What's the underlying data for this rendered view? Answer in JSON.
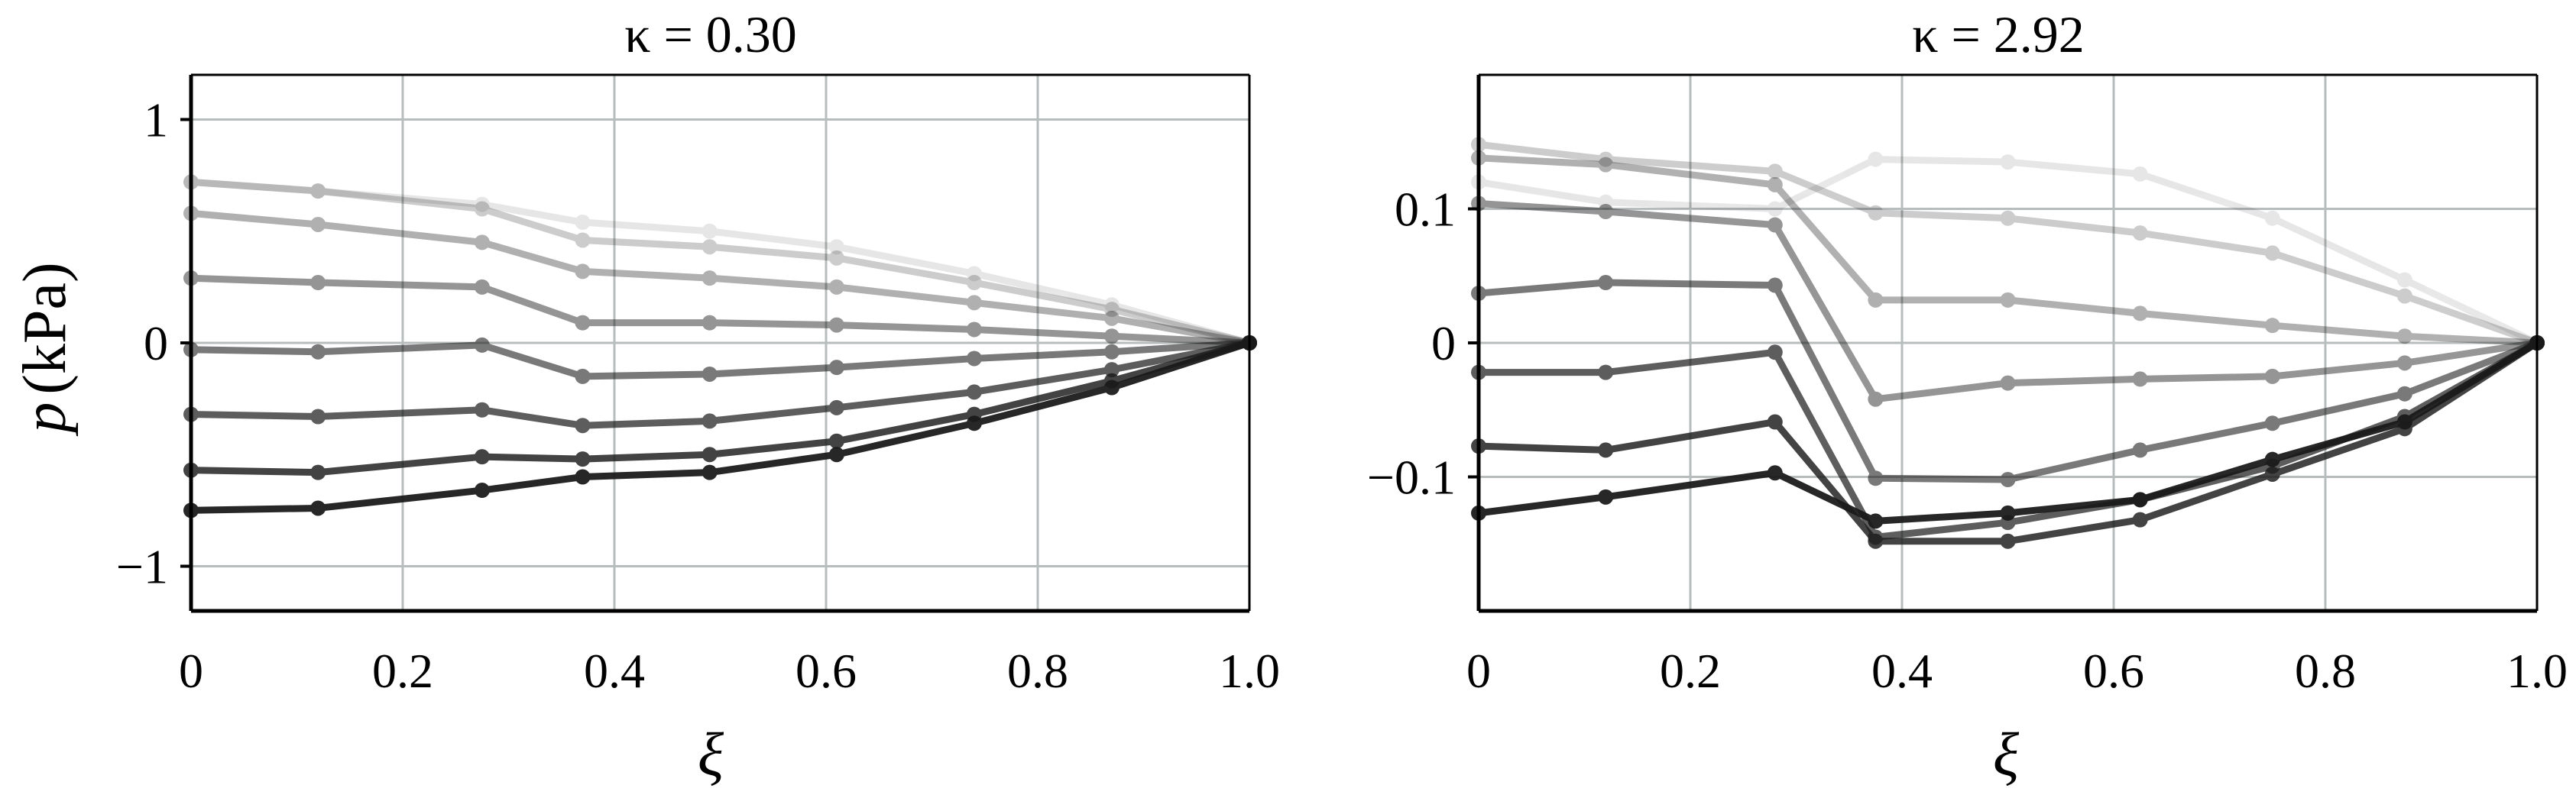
{
  "chart_data": [
    {
      "type": "line",
      "title": "κ = 0.30",
      "xlabel": "ξ",
      "ylabel_var": "p",
      "ylabel_unit": "(kPa)",
      "xlim": [
        0,
        1.0
      ],
      "ylim": [
        -1.2,
        1.2
      ],
      "grid": true,
      "xticks": [
        0,
        0.2,
        0.4,
        0.6,
        0.8,
        1.0
      ],
      "xtick_labels": [
        "0",
        "0.2",
        "0.4",
        "0.6",
        "0.8",
        "1.0"
      ],
      "yticks": [
        -1,
        0,
        1
      ],
      "ytick_labels": [
        "−1",
        "0",
        "1"
      ],
      "x": [
        0,
        0.12,
        0.275,
        0.37,
        0.49,
        0.61,
        0.74,
        0.87,
        1.0
      ],
      "series": [
        {
          "opacity": 0.1,
          "values": [
            0.72,
            0.68,
            0.62,
            0.54,
            0.5,
            0.43,
            0.31,
            0.17,
            0
          ]
        },
        {
          "opacity": 0.22,
          "values": [
            0.72,
            0.68,
            0.6,
            0.46,
            0.43,
            0.38,
            0.27,
            0.15,
            0
          ]
        },
        {
          "opacity": 0.34,
          "values": [
            0.58,
            0.53,
            0.45,
            0.32,
            0.29,
            0.25,
            0.18,
            0.11,
            0
          ]
        },
        {
          "opacity": 0.46,
          "values": [
            0.29,
            0.27,
            0.25,
            0.09,
            0.09,
            0.08,
            0.06,
            0.03,
            0
          ]
        },
        {
          "opacity": 0.58,
          "values": [
            -0.03,
            -0.04,
            -0.01,
            -0.15,
            -0.14,
            -0.11,
            -0.07,
            -0.04,
            0
          ]
        },
        {
          "opacity": 0.7,
          "values": [
            -0.32,
            -0.33,
            -0.3,
            -0.37,
            -0.35,
            -0.29,
            -0.22,
            -0.12,
            0
          ]
        },
        {
          "opacity": 0.82,
          "values": [
            -0.57,
            -0.58,
            -0.51,
            -0.52,
            -0.5,
            -0.44,
            -0.32,
            -0.17,
            0
          ]
        },
        {
          "opacity": 0.94,
          "values": [
            -0.75,
            -0.74,
            -0.66,
            -0.6,
            -0.58,
            -0.5,
            -0.36,
            -0.2,
            0
          ]
        }
      ]
    },
    {
      "type": "line",
      "title": "κ = 2.92",
      "xlabel": "ξ",
      "xlim": [
        0,
        1.0
      ],
      "ylim": [
        -0.2,
        0.2
      ],
      "grid": true,
      "xticks": [
        0,
        0.2,
        0.4,
        0.6,
        0.8,
        1.0
      ],
      "xtick_labels": [
        "0",
        "0.2",
        "0.4",
        "0.6",
        "0.8",
        "1.0"
      ],
      "yticks": [
        -0.1,
        0,
        0.1
      ],
      "ytick_labels": [
        "−0.1",
        "0",
        "0.1"
      ],
      "x": [
        0,
        0.12,
        0.28,
        0.375,
        0.5,
        0.625,
        0.75,
        0.875,
        1.0
      ],
      "series": [
        {
          "opacity": 0.1,
          "values": [
            0.12,
            0.105,
            0.1,
            0.137,
            0.135,
            0.126,
            0.093,
            0.047,
            0
          ]
        },
        {
          "opacity": 0.22,
          "values": [
            0.148,
            0.137,
            0.128,
            0.097,
            0.093,
            0.082,
            0.067,
            0.035,
            0
          ]
        },
        {
          "opacity": 0.34,
          "values": [
            0.138,
            0.133,
            0.118,
            0.032,
            0.032,
            0.022,
            0.013,
            0.005,
            0
          ]
        },
        {
          "opacity": 0.46,
          "values": [
            0.104,
            0.098,
            0.088,
            -0.042,
            -0.03,
            -0.027,
            -0.025,
            -0.015,
            0
          ]
        },
        {
          "opacity": 0.58,
          "values": [
            0.037,
            0.045,
            0.043,
            -0.101,
            -0.102,
            -0.08,
            -0.06,
            -0.038,
            0
          ]
        },
        {
          "opacity": 0.7,
          "values": [
            -0.022,
            -0.022,
            -0.007,
            -0.145,
            -0.134,
            -0.117,
            -0.092,
            -0.055,
            0
          ]
        },
        {
          "opacity": 0.82,
          "values": [
            -0.077,
            -0.08,
            -0.059,
            -0.148,
            -0.148,
            -0.132,
            -0.098,
            -0.064,
            0
          ]
        },
        {
          "opacity": 0.94,
          "values": [
            -0.127,
            -0.115,
            -0.097,
            -0.133,
            -0.127,
            -0.117,
            -0.087,
            -0.059,
            0
          ]
        }
      ]
    }
  ]
}
